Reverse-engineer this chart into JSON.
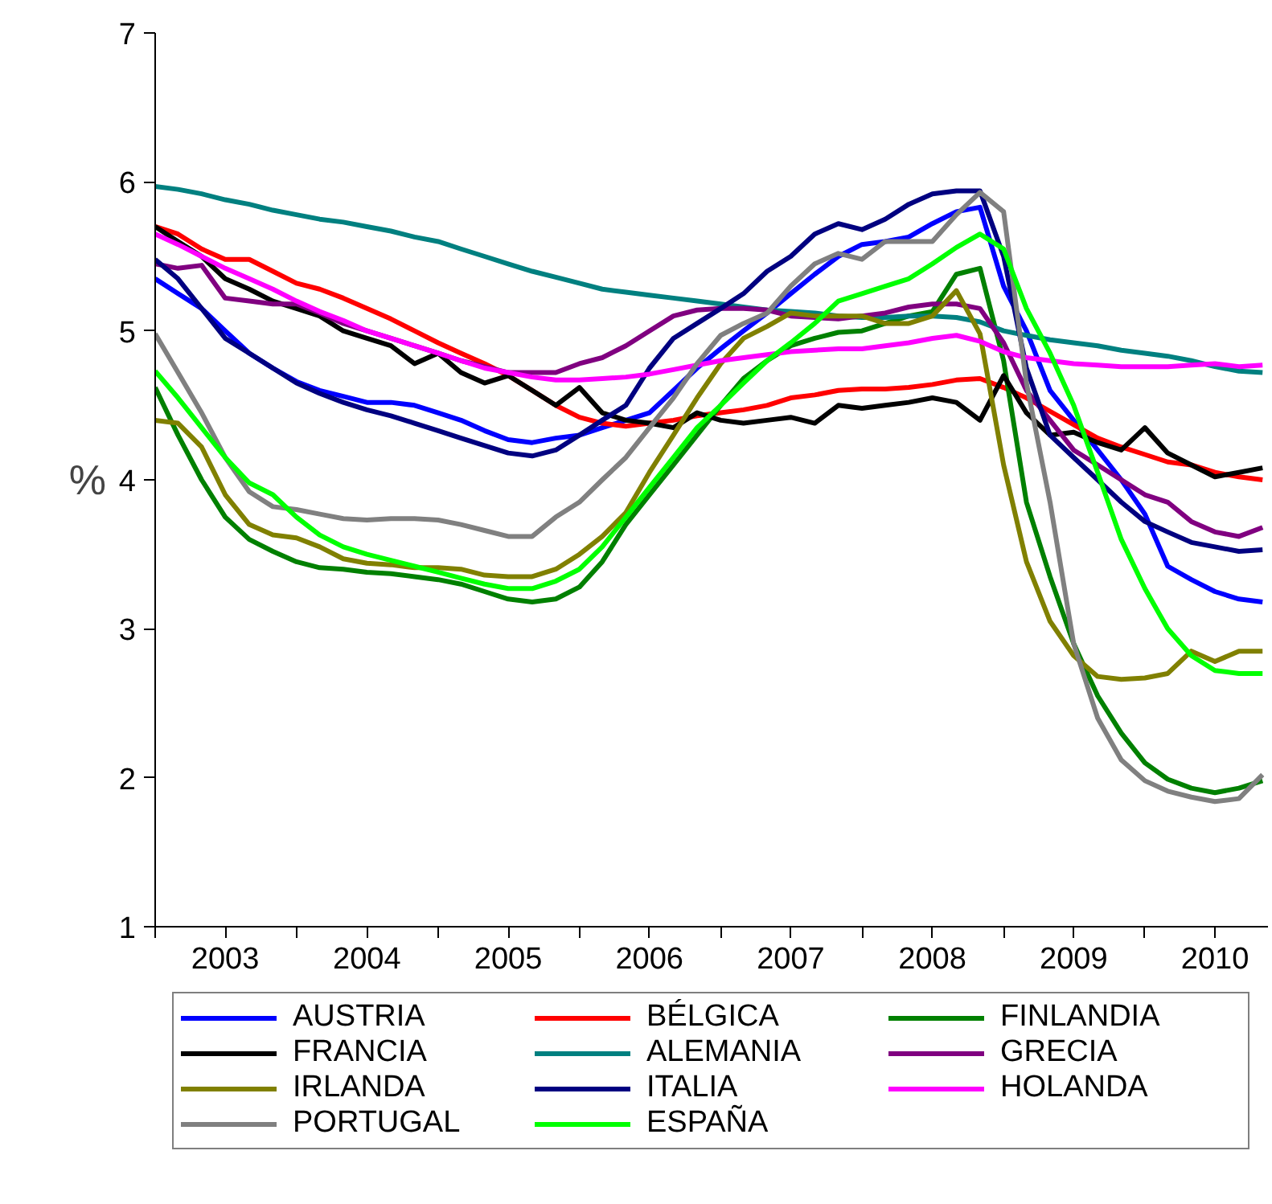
{
  "chart_data": {
    "type": "line",
    "ylabel": "%",
    "x": [
      "2003-01",
      "2003-03",
      "2003-05",
      "2003-07",
      "2003-09",
      "2003-11",
      "2004-01",
      "2004-03",
      "2004-05",
      "2004-07",
      "2004-09",
      "2004-11",
      "2005-01",
      "2005-03",
      "2005-05",
      "2005-07",
      "2005-09",
      "2005-11",
      "2006-01",
      "2006-03",
      "2006-05",
      "2006-07",
      "2006-09",
      "2006-11",
      "2007-01",
      "2007-03",
      "2007-05",
      "2007-07",
      "2007-09",
      "2007-11",
      "2008-01",
      "2008-03",
      "2008-05",
      "2008-07",
      "2008-09",
      "2008-11",
      "2009-01",
      "2009-03",
      "2009-05",
      "2009-07",
      "2009-09",
      "2009-11",
      "2010-01",
      "2010-03",
      "2010-05",
      "2010-07",
      "2010-09",
      "2010-11"
    ],
    "xlim": [
      "2003-01-01",
      "2010-11-15"
    ],
    "xticks": [
      {
        "value": "2003-01-01",
        "label": null
      },
      {
        "value": "2003-07-01",
        "label": "2003"
      },
      {
        "value": "2004-01-01",
        "label": null
      },
      {
        "value": "2004-07-01",
        "label": "2004"
      },
      {
        "value": "2005-01-01",
        "label": null
      },
      {
        "value": "2005-07-01",
        "label": "2005"
      },
      {
        "value": "2006-01-01",
        "label": null
      },
      {
        "value": "2006-07-01",
        "label": "2006"
      },
      {
        "value": "2007-01-01",
        "label": null
      },
      {
        "value": "2007-07-01",
        "label": "2007"
      },
      {
        "value": "2008-01-01",
        "label": null
      },
      {
        "value": "2008-07-01",
        "label": "2008"
      },
      {
        "value": "2009-01-01",
        "label": null
      },
      {
        "value": "2009-07-01",
        "label": "2009"
      },
      {
        "value": "2010-01-01",
        "label": null
      },
      {
        "value": "2010-07-01",
        "label": "2010"
      }
    ],
    "ylim": [
      1,
      7
    ],
    "yticks": [
      1,
      2,
      3,
      4,
      5,
      6,
      7
    ],
    "grid": false,
    "legend": "bottom",
    "line_style": "solid",
    "series": [
      {
        "name": "AUSTRIA",
        "color": "#0000ff",
        "values": [
          5.35,
          5.25,
          5.15,
          5.0,
          4.85,
          4.75,
          4.66,
          4.6,
          4.56,
          4.52,
          4.52,
          4.5,
          4.45,
          4.4,
          4.33,
          4.27,
          4.25,
          4.28,
          4.3,
          4.35,
          4.4,
          4.45,
          4.6,
          4.75,
          4.88,
          5.0,
          5.12,
          5.25,
          5.38,
          5.5,
          5.58,
          5.6,
          5.63,
          5.72,
          5.8,
          5.83,
          5.3,
          5.0,
          4.6,
          4.4,
          4.2,
          4.0,
          3.77,
          3.42,
          3.33,
          3.25,
          3.2,
          3.18
        ]
      },
      {
        "name": "BÉLGICA",
        "color": "#ff0000",
        "values": [
          5.7,
          5.65,
          5.55,
          5.48,
          5.48,
          5.4,
          5.32,
          5.28,
          5.22,
          5.15,
          5.08,
          5.0,
          4.92,
          4.85,
          4.78,
          4.7,
          4.6,
          4.5,
          4.42,
          4.38,
          4.36,
          4.38,
          4.4,
          4.43,
          4.45,
          4.47,
          4.5,
          4.55,
          4.57,
          4.6,
          4.61,
          4.61,
          4.62,
          4.64,
          4.67,
          4.68,
          4.62,
          4.55,
          4.46,
          4.37,
          4.28,
          4.22,
          4.17,
          4.12,
          4.1,
          4.05,
          4.02,
          4.0
        ]
      },
      {
        "name": "FINLANDIA",
        "color": "#008000",
        "values": [
          4.62,
          4.3,
          4.0,
          3.75,
          3.6,
          3.52,
          3.45,
          3.41,
          3.4,
          3.38,
          3.37,
          3.35,
          3.33,
          3.3,
          3.25,
          3.2,
          3.18,
          3.2,
          3.28,
          3.45,
          3.7,
          3.9,
          4.1,
          4.3,
          4.5,
          4.68,
          4.8,
          4.9,
          4.95,
          4.99,
          5.0,
          5.05,
          5.1,
          5.13,
          5.38,
          5.42,
          4.8,
          3.85,
          3.35,
          2.9,
          2.55,
          2.3,
          2.1,
          1.99,
          1.93,
          1.9,
          1.93,
          1.98
        ]
      },
      {
        "name": "FRANCIA",
        "color": "#000000",
        "values": [
          5.7,
          5.6,
          5.5,
          5.35,
          5.28,
          5.2,
          5.15,
          5.1,
          5.0,
          4.95,
          4.9,
          4.78,
          4.85,
          4.72,
          4.65,
          4.7,
          4.6,
          4.5,
          4.62,
          4.45,
          4.4,
          4.38,
          4.35,
          4.45,
          4.4,
          4.38,
          4.4,
          4.42,
          4.38,
          4.5,
          4.48,
          4.5,
          4.52,
          4.55,
          4.52,
          4.4,
          4.7,
          4.45,
          4.3,
          4.32,
          4.25,
          4.2,
          4.35,
          4.18,
          4.1,
          4.02,
          4.05,
          4.08
        ]
      },
      {
        "name": "ALEMANIA",
        "color": "#008080",
        "values": [
          5.97,
          5.95,
          5.92,
          5.88,
          5.85,
          5.81,
          5.78,
          5.75,
          5.73,
          5.7,
          5.67,
          5.63,
          5.6,
          5.55,
          5.5,
          5.45,
          5.4,
          5.36,
          5.32,
          5.28,
          5.26,
          5.24,
          5.22,
          5.2,
          5.18,
          5.16,
          5.14,
          5.13,
          5.12,
          5.1,
          5.09,
          5.09,
          5.1,
          5.1,
          5.09,
          5.06,
          5.0,
          4.97,
          4.94,
          4.92,
          4.9,
          4.87,
          4.85,
          4.83,
          4.8,
          4.76,
          4.73,
          4.72
        ]
      },
      {
        "name": "GRECIA",
        "color": "#800080",
        "values": [
          5.45,
          5.42,
          5.44,
          5.22,
          5.2,
          5.18,
          5.18,
          5.12,
          5.05,
          5.0,
          4.95,
          4.9,
          4.85,
          4.8,
          4.76,
          4.72,
          4.72,
          4.72,
          4.78,
          4.82,
          4.9,
          5.0,
          5.1,
          5.14,
          5.15,
          5.15,
          5.14,
          5.1,
          5.09,
          5.08,
          5.1,
          5.12,
          5.16,
          5.18,
          5.18,
          5.15,
          4.92,
          4.6,
          4.4,
          4.2,
          4.1,
          4.0,
          3.9,
          3.85,
          3.72,
          3.65,
          3.62,
          3.68
        ]
      },
      {
        "name": "IRLANDA",
        "color": "#808000",
        "values": [
          4.4,
          4.38,
          4.22,
          3.9,
          3.7,
          3.63,
          3.61,
          3.55,
          3.47,
          3.44,
          3.43,
          3.41,
          3.41,
          3.4,
          3.36,
          3.35,
          3.35,
          3.4,
          3.5,
          3.62,
          3.78,
          4.05,
          4.3,
          4.55,
          4.78,
          4.95,
          5.03,
          5.12,
          5.1,
          5.1,
          5.1,
          5.05,
          5.05,
          5.1,
          5.27,
          4.98,
          4.1,
          3.45,
          3.05,
          2.82,
          2.68,
          2.66,
          2.67,
          2.7,
          2.85,
          2.78,
          2.85,
          2.85
        ]
      },
      {
        "name": "ITALIA",
        "color": "#000080",
        "values": [
          5.48,
          5.35,
          5.15,
          4.95,
          4.85,
          4.75,
          4.65,
          4.58,
          4.52,
          4.47,
          4.43,
          4.38,
          4.33,
          4.28,
          4.23,
          4.18,
          4.16,
          4.2,
          4.3,
          4.4,
          4.5,
          4.75,
          4.95,
          5.05,
          5.15,
          5.25,
          5.4,
          5.5,
          5.65,
          5.72,
          5.68,
          5.75,
          5.85,
          5.92,
          5.94,
          5.94,
          5.5,
          4.75,
          4.3,
          4.15,
          4.0,
          3.85,
          3.72,
          3.65,
          3.58,
          3.55,
          3.52,
          3.53
        ]
      },
      {
        "name": "HOLANDA",
        "color": "#ff00ff",
        "values": [
          5.65,
          5.58,
          5.5,
          5.42,
          5.35,
          5.28,
          5.2,
          5.13,
          5.07,
          5.0,
          4.95,
          4.9,
          4.85,
          4.8,
          4.75,
          4.72,
          4.69,
          4.67,
          4.67,
          4.68,
          4.69,
          4.71,
          4.74,
          4.77,
          4.8,
          4.82,
          4.84,
          4.86,
          4.87,
          4.88,
          4.88,
          4.9,
          4.92,
          4.95,
          4.97,
          4.93,
          4.86,
          4.82,
          4.8,
          4.78,
          4.77,
          4.76,
          4.76,
          4.76,
          4.77,
          4.78,
          4.76,
          4.77
        ]
      },
      {
        "name": "PORTUGAL",
        "color": "#808080",
        "values": [
          4.98,
          4.72,
          4.45,
          4.15,
          3.92,
          3.82,
          3.8,
          3.77,
          3.74,
          3.73,
          3.74,
          3.74,
          3.73,
          3.7,
          3.66,
          3.62,
          3.62,
          3.75,
          3.85,
          4.0,
          4.15,
          4.35,
          4.55,
          4.78,
          4.97,
          5.05,
          5.12,
          5.3,
          5.45,
          5.52,
          5.48,
          5.6,
          5.6,
          5.6,
          5.78,
          5.93,
          5.8,
          4.65,
          3.85,
          2.9,
          2.4,
          2.12,
          1.98,
          1.91,
          1.87,
          1.84,
          1.86,
          2.02
        ]
      },
      {
        "name": "ESPAÑA",
        "color": "#00ff00",
        "values": [
          4.73,
          4.55,
          4.35,
          4.15,
          3.98,
          3.9,
          3.75,
          3.63,
          3.55,
          3.5,
          3.46,
          3.42,
          3.38,
          3.34,
          3.3,
          3.27,
          3.27,
          3.32,
          3.4,
          3.55,
          3.75,
          3.95,
          4.15,
          4.35,
          4.5,
          4.65,
          4.8,
          4.92,
          5.05,
          5.2,
          5.25,
          5.3,
          5.35,
          5.45,
          5.56,
          5.65,
          5.55,
          5.15,
          4.85,
          4.5,
          4.05,
          3.6,
          3.27,
          3.0,
          2.82,
          2.72,
          2.7,
          2.7
        ]
      }
    ]
  }
}
